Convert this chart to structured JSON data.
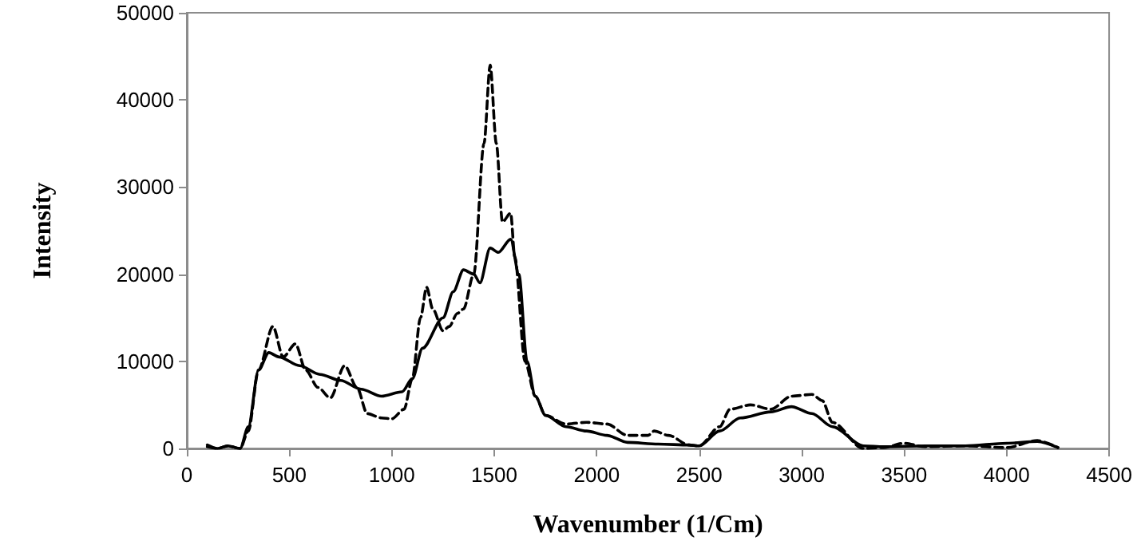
{
  "chart_data": {
    "type": "line",
    "xlabel": "Wavenumber (1/Cm)",
    "ylabel": "Intensity",
    "xlim": [
      0,
      4500
    ],
    "xticks": [
      0,
      500,
      1000,
      1500,
      2000,
      2500,
      3000,
      3500,
      4000,
      4500
    ],
    "ylim": [
      0,
      50000
    ],
    "yticks": [
      0,
      10000,
      20000,
      30000,
      40000,
      50000
    ],
    "grid": false,
    "marker": "none",
    "series": [
      {
        "color": "#000000",
        "line_style": "solid",
        "x": [
          100,
          150,
          200,
          260,
          300,
          350,
          400,
          450,
          550,
          650,
          750,
          850,
          950,
          1050,
          1100,
          1150,
          1250,
          1300,
          1350,
          1400,
          1430,
          1480,
          1520,
          1580,
          1620,
          1660,
          1700,
          1750,
          1850,
          1950,
          2050,
          2150,
          2300,
          2450,
          2500,
          2600,
          2700,
          2850,
          2950,
          3050,
          3150,
          3300,
          3400,
          3600,
          3800,
          4000,
          4150,
          4250
        ],
        "values": [
          400,
          0,
          300,
          0,
          2500,
          9000,
          11000,
          10500,
          9500,
          8500,
          7800,
          6800,
          6000,
          6500,
          8000,
          11500,
          15000,
          18000,
          20500,
          20000,
          19000,
          23000,
          22500,
          24000,
          20000,
          10000,
          6000,
          3800,
          2500,
          2000,
          1500,
          700,
          500,
          400,
          300,
          2000,
          3500,
          4200,
          4800,
          4000,
          2500,
          300,
          200,
          300,
          300,
          600,
          800,
          100
        ]
      },
      {
        "color": "#000000",
        "line_style": "dashed",
        "x": [
          100,
          150,
          200,
          260,
          300,
          350,
          420,
          470,
          530,
          580,
          640,
          700,
          770,
          830,
          880,
          950,
          1000,
          1060,
          1100,
          1140,
          1170,
          1200,
          1250,
          1280,
          1320,
          1350,
          1400,
          1450,
          1480,
          1510,
          1540,
          1580,
          1600,
          1650,
          1700,
          1750,
          1850,
          1950,
          2050,
          2150,
          2250,
          2280,
          2350,
          2450,
          2500,
          2600,
          2650,
          2750,
          2850,
          2950,
          3050,
          3100,
          3150,
          3300,
          3400,
          3500,
          3600,
          3800,
          4000,
          4150,
          4250
        ],
        "values": [
          200,
          0,
          300,
          0,
          2000,
          9000,
          14000,
          10500,
          12000,
          9000,
          7000,
          5800,
          9500,
          7000,
          4000,
          3500,
          3400,
          4500,
          8000,
          15000,
          18500,
          16000,
          13500,
          14000,
          15500,
          16000,
          20000,
          35000,
          44000,
          35000,
          26000,
          27000,
          22000,
          10000,
          6000,
          3800,
          2800,
          3000,
          2800,
          1500,
          1500,
          2000,
          1500,
          400,
          300,
          2500,
          4500,
          5000,
          4500,
          6000,
          6200,
          5500,
          3000,
          0,
          100,
          600,
          200,
          300,
          100,
          900,
          100
        ]
      }
    ]
  }
}
